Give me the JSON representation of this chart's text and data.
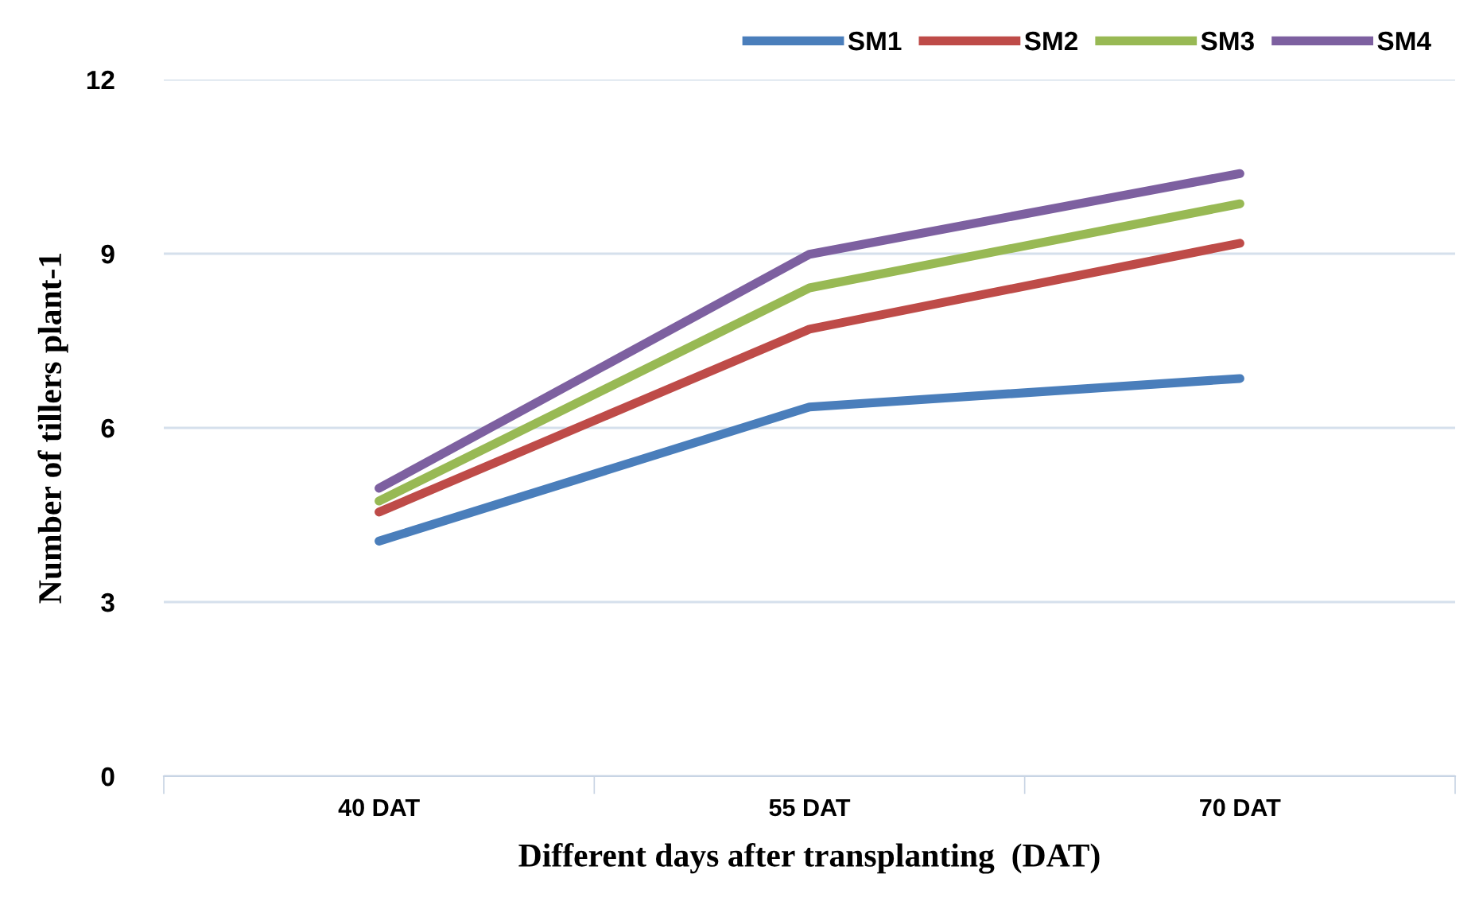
{
  "chart_data": {
    "type": "line",
    "xlabel": "Different days after transplanting  (DAT)",
    "ylabel": "Number of tillers plant-1",
    "categories": [
      "40 DAT",
      "55 DAT",
      "70 DAT"
    ],
    "series": [
      {
        "name": "SM1",
        "color": "#4a7ebb",
        "values": [
          4.05,
          6.36,
          6.85
        ]
      },
      {
        "name": "SM2",
        "color": "#be4b48",
        "values": [
          4.55,
          7.7,
          9.18
        ]
      },
      {
        "name": "SM3",
        "color": "#98b954",
        "values": [
          4.74,
          8.41,
          9.86
        ]
      },
      {
        "name": "SM4",
        "color": "#7d60a0",
        "values": [
          4.96,
          8.99,
          10.38
        ]
      }
    ],
    "ylim": [
      0,
      12
    ],
    "yticks": [
      0,
      3,
      6,
      9,
      12
    ],
    "grid": "y",
    "legend": "top right",
    "marker": "none",
    "line_style": "solid"
  }
}
